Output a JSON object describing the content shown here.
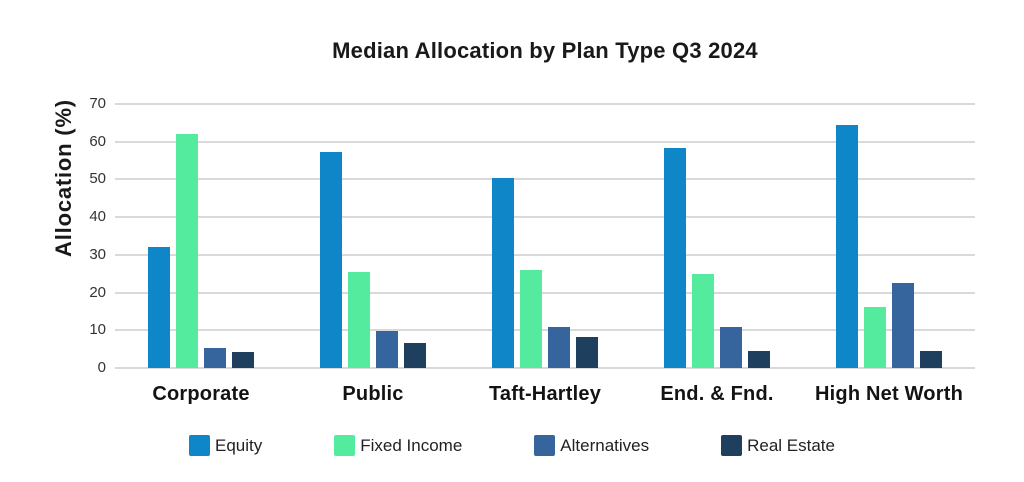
{
  "chart_data": {
    "type": "bar",
    "title": "Median Allocation by Plan Type Q3 2024",
    "xlabel": "",
    "ylabel": "Allocation (%)",
    "categories": [
      "Corporate",
      "Public",
      "Taft-Hartley",
      "End. & Fnd.",
      "High Net Worth"
    ],
    "series": [
      {
        "name": "Equity",
        "color": "#0E86C8",
        "values": [
          32.0,
          57.3,
          50.5,
          58.4,
          64.4
        ]
      },
      {
        "name": "Fixed Income",
        "color": "#55EB9F",
        "values": [
          62.0,
          25.4,
          26.0,
          25.0,
          16.3
        ]
      },
      {
        "name": "Alternatives",
        "color": "#36649D",
        "values": [
          5.3,
          9.7,
          10.8,
          10.8,
          22.6
        ]
      },
      {
        "name": "Real Estate",
        "color": "#1F3F5E",
        "values": [
          4.3,
          6.6,
          8.3,
          4.4,
          4.4
        ]
      }
    ],
    "ylim": [
      0,
      70
    ],
    "yticks": [
      0,
      10,
      20,
      30,
      40,
      50,
      60,
      70
    ],
    "grid": true,
    "legend_position": "bottom",
    "colors": {
      "grid_line": "#d9d9d9",
      "title_text": "#191919",
      "tick_text": "#333333",
      "axis_label_text": "#191919",
      "category_text": "#131313",
      "legend_text": "#222222",
      "background": "#ffffff"
    }
  }
}
